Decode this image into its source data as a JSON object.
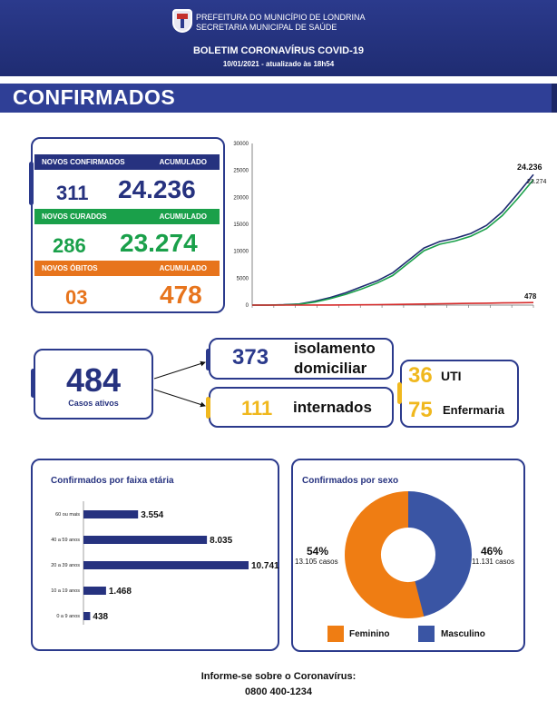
{
  "header": {
    "org_line1": "PREFEITURA DO MUNICÍPIO DE LONDRINA",
    "org_line2": "SECRETARIA MUNICIPAL DE SAÚDE",
    "title": "BOLETIM CORONAVÍRUS COVID-19",
    "date": "10/01/2021 - atualizado às 18h54",
    "crest_icon": "city-crest-icon"
  },
  "section": {
    "title": "CONFIRMADOS"
  },
  "summary": {
    "confirmed": {
      "label": "NOVOS CONFIRMADOS",
      "acc_label": "ACUMULADO",
      "new": "311",
      "total": "24.236",
      "color": "#26327f"
    },
    "cured": {
      "label": "NOVOS CURADOS",
      "acc_label": "ACUMULADO",
      "new": "286",
      "total": "23.274",
      "color": "#1aa04a"
    },
    "deaths": {
      "label": "NOVOS ÓBITOS",
      "acc_label": "ACUMULADO",
      "new": "03",
      "total": "478",
      "color": "#e7741c"
    }
  },
  "active": {
    "count": "484",
    "label": "Casos ativos",
    "isolation": {
      "count": "373",
      "label_line1": "isolamento",
      "label_line2": "domiciliar"
    },
    "hospitalized": {
      "count": "111",
      "label": "internados"
    },
    "uti": {
      "count": "36",
      "label": "UTI"
    },
    "ward": {
      "count": "75",
      "label": "Enfermaria"
    }
  },
  "chart_data": [
    {
      "type": "line",
      "title": "",
      "ylim": [
        0,
        30000
      ],
      "yticks": [
        "0",
        "5000",
        "10000",
        "15000",
        "20000",
        "25000",
        "30000"
      ],
      "grid": false,
      "series": [
        {
          "values": [
            0,
            0,
            60,
            200,
            700,
            1400,
            2300,
            3400,
            4500,
            6000,
            8300,
            10600,
            11800,
            12400,
            13300,
            14800,
            17300,
            20700,
            24236
          ],
          "color": "#1f2c72",
          "end_label": "24.236"
        },
        {
          "values": [
            0,
            0,
            40,
            150,
            550,
            1200,
            2000,
            3000,
            4100,
            5500,
            7800,
            10100,
            11300,
            11900,
            12800,
            14200,
            16600,
            19800,
            23274
          ],
          "color": "#1aa04a",
          "end_label": "23.274"
        },
        {
          "values": [
            0,
            0,
            2,
            5,
            10,
            20,
            35,
            55,
            80,
            110,
            150,
            200,
            240,
            280,
            320,
            360,
            400,
            440,
            478
          ],
          "color": "#d62b2b",
          "end_label": "478"
        }
      ]
    },
    {
      "type": "bar",
      "title": "Confirmados por faixa etária",
      "orientation": "horizontal",
      "categories": [
        "60 ou mais",
        "40 a 59 anos",
        "20 a 39 anos",
        "10 a 19 anos",
        "0 a 9 anos"
      ],
      "values": [
        3554,
        8035,
        10741,
        1468,
        438
      ],
      "labels": [
        "3.554",
        "8.035",
        "10.741",
        "1.468",
        "438"
      ],
      "color": "#26327f"
    },
    {
      "type": "pie",
      "title": "Confirmados por sexo",
      "donut": true,
      "categories": [
        "Feminino",
        "Masculino"
      ],
      "values": [
        13105,
        11131
      ],
      "percent_labels": [
        "54%",
        "46%"
      ],
      "case_labels": [
        "13.105 casos",
        "11.131 casos"
      ],
      "colors": [
        "#ef7d13",
        "#3a55a4"
      ]
    }
  ],
  "footer": {
    "line1": "Informe-se sobre o Coronavírus:",
    "line2": "0800 400-1234"
  }
}
